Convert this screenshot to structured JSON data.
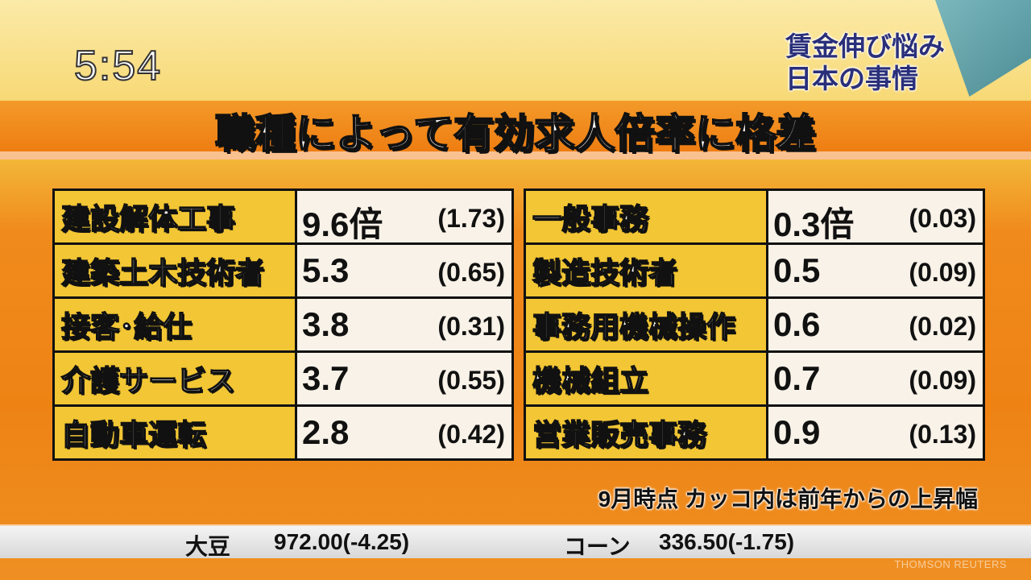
{
  "clock": "5:54",
  "corner_title": [
    "賃金伸び悩み",
    "日本の事情"
  ],
  "headline": "職種によって有効求人倍率に格差",
  "left_table": [
    {
      "job": "建設解体工事",
      "ratio": "9.6倍",
      "change": "(1.73)"
    },
    {
      "job": "建築土木技術者",
      "ratio": "5.3",
      "change": "(0.65)"
    },
    {
      "job": "接客･給仕",
      "ratio": "3.8",
      "change": "(0.31)"
    },
    {
      "job": "介護サービス",
      "ratio": "3.7",
      "change": "(0.55)"
    },
    {
      "job": "自動車運転",
      "ratio": "2.8",
      "change": "(0.42)"
    }
  ],
  "right_table": [
    {
      "job": "一般事務",
      "ratio": "0.3倍",
      "change": "(0.03)"
    },
    {
      "job": "製造技術者",
      "ratio": "0.5",
      "change": "(0.09)"
    },
    {
      "job": "事務用機械操作",
      "ratio": "0.6",
      "change": "(0.02)"
    },
    {
      "job": "機械組立",
      "ratio": "0.7",
      "change": "(0.09)"
    },
    {
      "job": "営業販売事務",
      "ratio": "0.9",
      "change": "(0.13)"
    }
  ],
  "note": "9月時点 カッコ内は前年からの上昇幅",
  "ticker": [
    {
      "name": "大豆",
      "value": "972.00(-4.25)"
    },
    {
      "name": "コーン",
      "value": "336.50(-1.75)"
    }
  ],
  "watermark": "THOMSON REUTERS",
  "colors": {
    "label_cell": "#f2c634",
    "value_cell": "#f8f2e8",
    "corner_text": "#2a2f7a",
    "background": "#ee8314"
  }
}
